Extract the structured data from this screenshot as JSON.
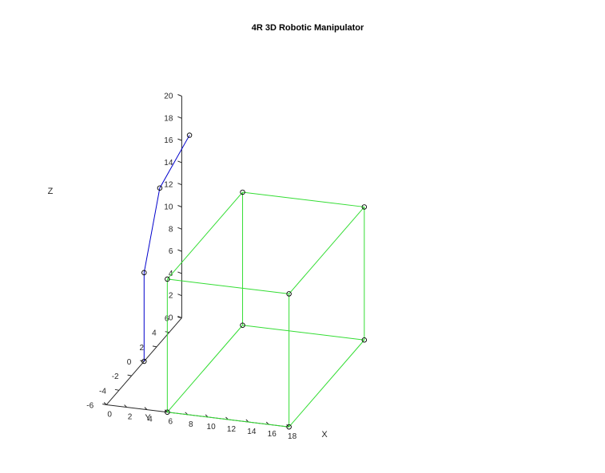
{
  "chart_data": {
    "type": "line3d",
    "title": "4R 3D Robotic Manipulator",
    "xlabel": "X",
    "ylabel": "Y",
    "zlabel": "Z",
    "xlim": [
      0,
      18
    ],
    "ylim": [
      -6,
      6
    ],
    "zlim": [
      0,
      20
    ],
    "x_ticks": [
      0,
      2,
      4,
      6,
      8,
      10,
      12,
      14,
      16,
      18
    ],
    "y_ticks": [
      -6,
      -4,
      -2,
      0,
      2,
      4,
      6
    ],
    "z_ticks": [
      0,
      2,
      4,
      6,
      8,
      10,
      12,
      14,
      16,
      18,
      20
    ],
    "grid": false,
    "colors": {
      "arm": "#0000cc",
      "workspace": "#33dd33",
      "marker": "#000000",
      "axes": "#262626"
    },
    "series": [
      {
        "points": [
          [
            0,
            0,
            0
          ],
          [
            0,
            0,
            8
          ],
          [
            0,
            2.5,
            14
          ],
          [
            2,
            4,
            18
          ]
        ]
      }
    ],
    "workspace_box": {
      "vertices": [
        [
          6,
          -6,
          0
        ],
        [
          18,
          -6,
          0
        ],
        [
          18,
          6,
          0
        ],
        [
          6,
          6,
          0
        ],
        [
          6,
          -6,
          12
        ],
        [
          18,
          -6,
          12
        ],
        [
          18,
          6,
          12
        ],
        [
          6,
          6,
          12
        ]
      ],
      "edges": [
        [
          0,
          1
        ],
        [
          1,
          2
        ],
        [
          2,
          3
        ],
        [
          3,
          0
        ],
        [
          4,
          5
        ],
        [
          5,
          6
        ],
        [
          6,
          7
        ],
        [
          7,
          4
        ],
        [
          0,
          4
        ],
        [
          1,
          5
        ],
        [
          2,
          6
        ],
        [
          3,
          7
        ]
      ]
    }
  }
}
